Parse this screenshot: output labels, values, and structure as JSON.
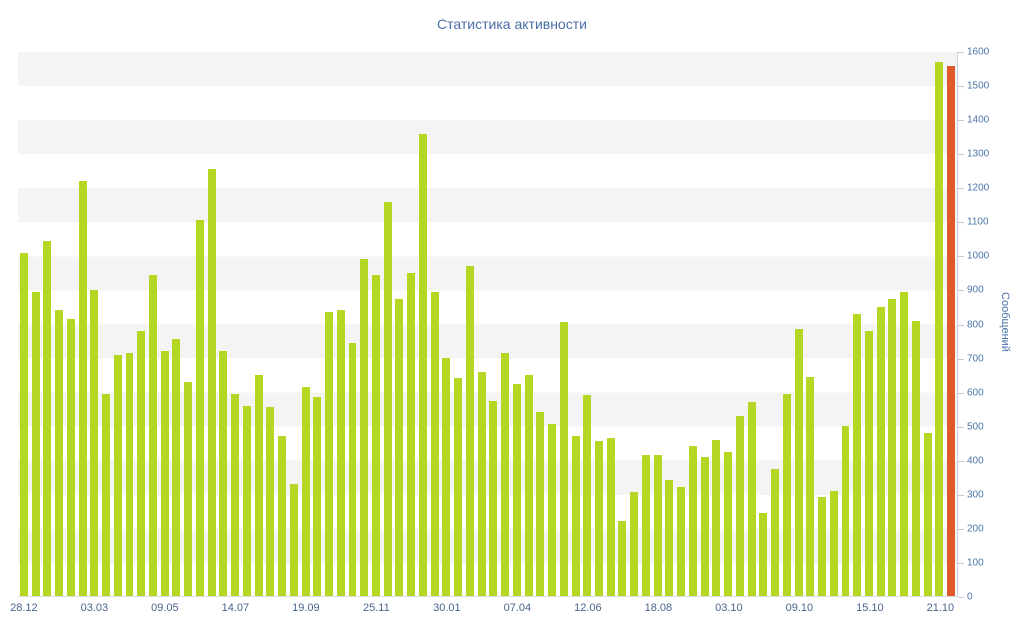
{
  "title": "Статистика активности",
  "chart_data": {
    "type": "bar",
    "title": "Статистика активности",
    "xlabel": "",
    "ylabel": "Сообщений",
    "ylim": [
      0,
      1600
    ],
    "ytick_interval": 100,
    "ytick_labels": [
      "0",
      "100",
      "200",
      "300",
      "400",
      "500",
      "600",
      "700",
      "800",
      "900",
      "1000",
      "1100",
      "1200",
      "1300",
      "1400",
      "1500",
      "1600"
    ],
    "x_tick_labels": [
      "28.12",
      "03.03",
      "09.05",
      "14.07",
      "19.09",
      "25.11",
      "30.01",
      "07.04",
      "12.06",
      "18.08",
      "03.10",
      "09.10",
      "15.10",
      "21.10"
    ],
    "x_label_every": 6,
    "legend_position": "none",
    "grid": "alternating horizontal bands",
    "colors": {
      "bar": "#b3d723",
      "highlight_bar": "#e0592a",
      "title_text": "#4a6fa5",
      "axis_text": "#4a74a8",
      "band": "#f4f4f4"
    },
    "highlight_last_bar": true,
    "values": [
      1010,
      895,
      1045,
      840,
      815,
      1220,
      900,
      595,
      710,
      715,
      780,
      945,
      720,
      755,
      630,
      1105,
      1255,
      720,
      595,
      560,
      650,
      555,
      470,
      330,
      615,
      585,
      835,
      840,
      745,
      990,
      945,
      1160,
      875,
      950,
      1360,
      895,
      700,
      640,
      970,
      660,
      575,
      715,
      625,
      650,
      540,
      505,
      805,
      470,
      590,
      455,
      465,
      220,
      305,
      415,
      415,
      340,
      320,
      440,
      410,
      460,
      425,
      530,
      570,
      245,
      375,
      595,
      785,
      645,
      290,
      310,
      500,
      830,
      780,
      850,
      875,
      895,
      810,
      480,
      1570,
      1560
    ]
  }
}
